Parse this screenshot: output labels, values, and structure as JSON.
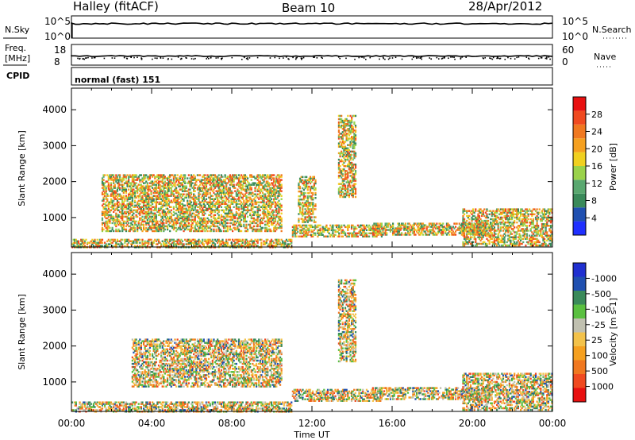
{
  "header": {
    "station": "Halley (fitACF)",
    "beam": "Beam 10",
    "date": "28/Apr/2012"
  },
  "params": {
    "nsky_label": "N.Sky",
    "nsearch_label": "N.Search",
    "noise_ticks": [
      "10^5",
      "10^0"
    ],
    "freq_label_1": "Freq.",
    "freq_label_2": "[MHz]",
    "freq_ticks": [
      "18",
      "8"
    ],
    "nave_label": "Nave",
    "nave_ticks": [
      "60",
      "0"
    ],
    "cpid_label": "CPID",
    "cpid_value": "normal (fast) 151"
  },
  "colors": {
    "power": [
      "#2030ff",
      "#2050b0",
      "#3a8a5a",
      "#5aa870",
      "#9ad24a",
      "#f0d020",
      "#f5a020",
      "#f07820",
      "#f04a20",
      "#e81010"
    ],
    "velocity": [
      "#e81010",
      "#f04a20",
      "#f07820",
      "#f5a020",
      "#f3c24a",
      "#c0c0b0",
      "#5ac040",
      "#3a8a5a",
      "#2050b0",
      "#2030d0"
    ]
  },
  "chart_data": [
    {
      "type": "heatmap",
      "title": "Power",
      "xlabel": "Time UT",
      "ylabel": "Slant Range [km]",
      "colorbar_label": "Power [dB]",
      "x_ticks": [
        "00:00",
        "04:00",
        "08:00",
        "12:00",
        "16:00",
        "20:00",
        "00:00"
      ],
      "x_range_hours": [
        0,
        24
      ],
      "y_ticks": [
        1000,
        2000,
        3000,
        4000
      ],
      "ylim": [
        180,
        4600
      ],
      "colorbar_ticks": [
        4,
        8,
        12,
        16,
        20,
        24,
        28
      ],
      "colorbar_range": [
        0,
        32
      ],
      "echo_regions": [
        {
          "t": [
            1.5,
            10.5
          ],
          "r": [
            650,
            2250
          ],
          "v": [
            6,
            28
          ]
        },
        {
          "t": [
            0.0,
            11.0
          ],
          "r": [
            200,
            450
          ],
          "v": [
            4,
            20
          ]
        },
        {
          "t": [
            11.0,
            15.5
          ],
          "r": [
            500,
            850
          ],
          "v": [
            8,
            26
          ]
        },
        {
          "t": [
            11.3,
            12.2
          ],
          "r": [
            900,
            2200
          ],
          "v": [
            4,
            14
          ]
        },
        {
          "t": [
            13.3,
            14.2
          ],
          "r": [
            1600,
            3900
          ],
          "v": [
            4,
            12
          ]
        },
        {
          "t": [
            15.0,
            21.0
          ],
          "r": [
            550,
            900
          ],
          "v": [
            4,
            14
          ]
        },
        {
          "t": [
            19.5,
            24.0
          ],
          "r": [
            250,
            1300
          ],
          "v": [
            4,
            18
          ]
        }
      ]
    },
    {
      "type": "heatmap",
      "title": "Velocity",
      "xlabel": "Time UT",
      "ylabel": "Slant Range [km]",
      "colorbar_label": "Velocity [m s-1]",
      "x_ticks": [
        "00:00",
        "04:00",
        "08:00",
        "12:00",
        "16:00",
        "20:00",
        "00:00"
      ],
      "x_range_hours": [
        0,
        24
      ],
      "y_ticks": [
        1000,
        2000,
        3000,
        4000
      ],
      "ylim": [
        180,
        4600
      ],
      "colorbar_ticks": [
        "1000",
        "500",
        "100",
        "25",
        "-25",
        "-100",
        "-500",
        "-1000"
      ],
      "echo_regions": [
        {
          "t": [
            3.0,
            10.5
          ],
          "r": [
            900,
            2250
          ],
          "v": [
            -500,
            100
          ]
        },
        {
          "t": [
            0.0,
            11.0
          ],
          "r": [
            200,
            500
          ],
          "v": [
            -100,
            25
          ]
        },
        {
          "t": [
            11.0,
            15.5
          ],
          "r": [
            500,
            850
          ],
          "v": [
            -100,
            25
          ]
        },
        {
          "t": [
            13.3,
            14.2
          ],
          "r": [
            1600,
            3900
          ],
          "v": [
            -100,
            100
          ]
        },
        {
          "t": [
            15.0,
            21.0
          ],
          "r": [
            550,
            900
          ],
          "v": [
            -100,
            100
          ]
        },
        {
          "t": [
            19.5,
            24.0
          ],
          "r": [
            250,
            1300
          ],
          "v": [
            -100,
            500
          ]
        }
      ]
    }
  ]
}
